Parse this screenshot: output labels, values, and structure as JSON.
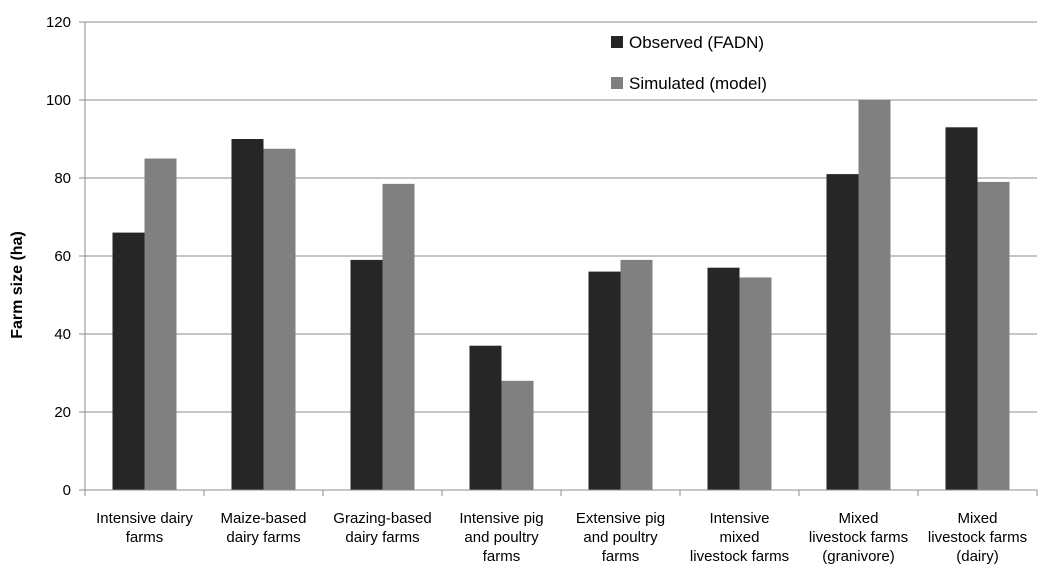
{
  "chart_data": {
    "type": "bar",
    "title": "",
    "xlabel": "",
    "ylabel": "Farm size (ha)",
    "ylim": [
      0,
      120
    ],
    "yticks": [
      "0",
      "20",
      "40",
      "60",
      "80",
      "100",
      "120"
    ],
    "grid": "horizontal",
    "legend_position": "top-right",
    "categories": [
      [
        "Intensive dairy",
        "farms"
      ],
      [
        "Maize-based",
        "dairy farms"
      ],
      [
        "Grazing-based",
        "dairy farms"
      ],
      [
        "Intensive pig",
        "and poultry",
        "farms"
      ],
      [
        "Extensive pig",
        "and poultry",
        "farms"
      ],
      [
        "Intensive",
        "mixed",
        "livestock farms"
      ],
      [
        "Mixed",
        "livestock farms",
        "(granivore)"
      ],
      [
        "Mixed",
        "livestock farms",
        "(dairy)"
      ]
    ],
    "series": [
      {
        "name": "Observed (FADN)",
        "color": "#262626",
        "values": [
          66,
          90,
          59,
          37,
          56,
          57,
          81,
          93
        ]
      },
      {
        "name": "Simulated (model)",
        "color": "#808080",
        "values": [
          85,
          87.5,
          78.5,
          28,
          59,
          54.5,
          100,
          79
        ]
      }
    ]
  }
}
